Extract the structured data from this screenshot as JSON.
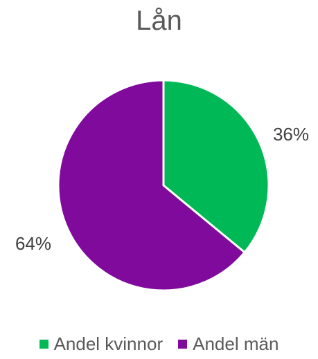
{
  "chart_data": {
    "type": "pie",
    "title": "Lån",
    "slices": [
      {
        "name": "Andel kvinnor",
        "value": 36,
        "label": "36%",
        "color": "#00b956"
      },
      {
        "name": "Andel män",
        "value": 64,
        "label": "64%",
        "color": "#7f0a9c"
      }
    ],
    "start_angle_deg": 0,
    "direction": "clockwise",
    "legend_position": "bottom"
  }
}
